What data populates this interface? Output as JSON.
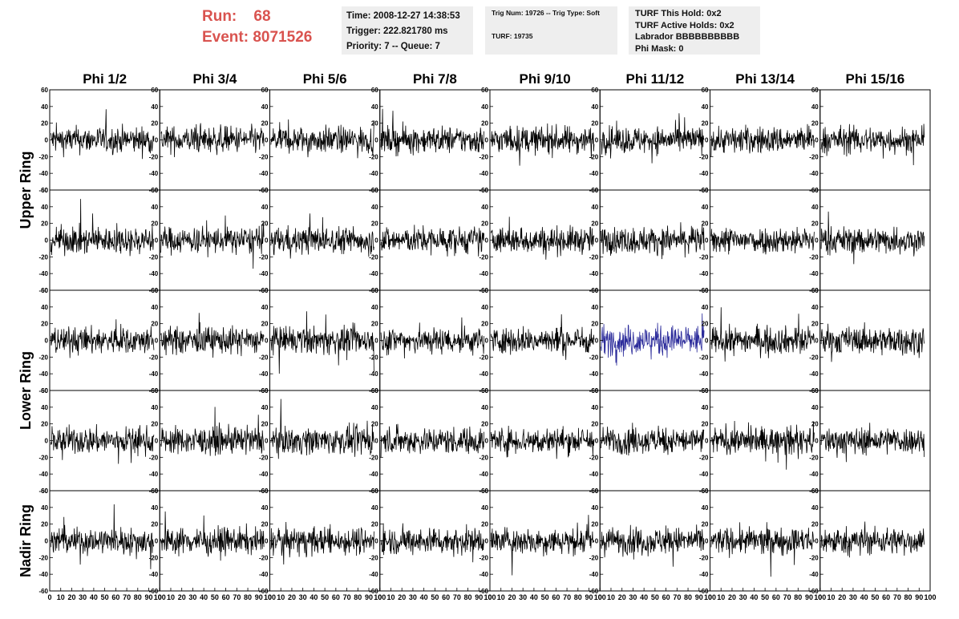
{
  "header": {
    "run_label": "Run:",
    "run_value": "68",
    "event_label": "Event:",
    "event_value": "8071526",
    "time": "Time: 2008-12-27 14:38:53",
    "trigger": "Trigger: 222.821780 ms",
    "priority": "Priority: 7 -- Queue: 7",
    "trig_num": "Trig Num: 19726 -- Trig Type: Soft",
    "turf": "TURF: 19735",
    "turf_this_hold": "TURF This Hold: 0x2",
    "turf_active_holds": "TURF Active Holds: 0x2",
    "labrador": "Labrador BBBBBBBBBB",
    "phi_mask": "Phi Mask: 0"
  },
  "colors": {
    "header_red": "#d9534f",
    "box_gray": "#eeeeee",
    "trace": "#000000",
    "highlight_trace": "#2a2a9a"
  },
  "chart_data": {
    "type": "line",
    "columns": [
      "Phi 1/2",
      "Phi 3/4",
      "Phi 5/6",
      "Phi 7/8",
      "Phi 9/10",
      "Phi 11/12",
      "Phi 13/14",
      "Phi 15/16"
    ],
    "ring_labels": [
      "Upper Ring",
      "Lower Ring",
      "Nadir Ring"
    ],
    "rows": 5,
    "xlim": [
      0,
      100
    ],
    "ylim": [
      -60,
      60
    ],
    "x_ticks": [
      "0",
      "10",
      "20",
      "30",
      "40",
      "50",
      "60",
      "70",
      "80",
      "90",
      "100"
    ],
    "y_ticks": [
      "60",
      "40",
      "20",
      "0",
      "-20",
      "-40",
      "-60"
    ],
    "highlight_panel": {
      "row": 2,
      "col": 5
    },
    "grid": false,
    "note_samples": "Each panel: noise waveform, ~260 samples over 0-95, amplitude roughly +/-20 with spikes to +/-45"
  }
}
